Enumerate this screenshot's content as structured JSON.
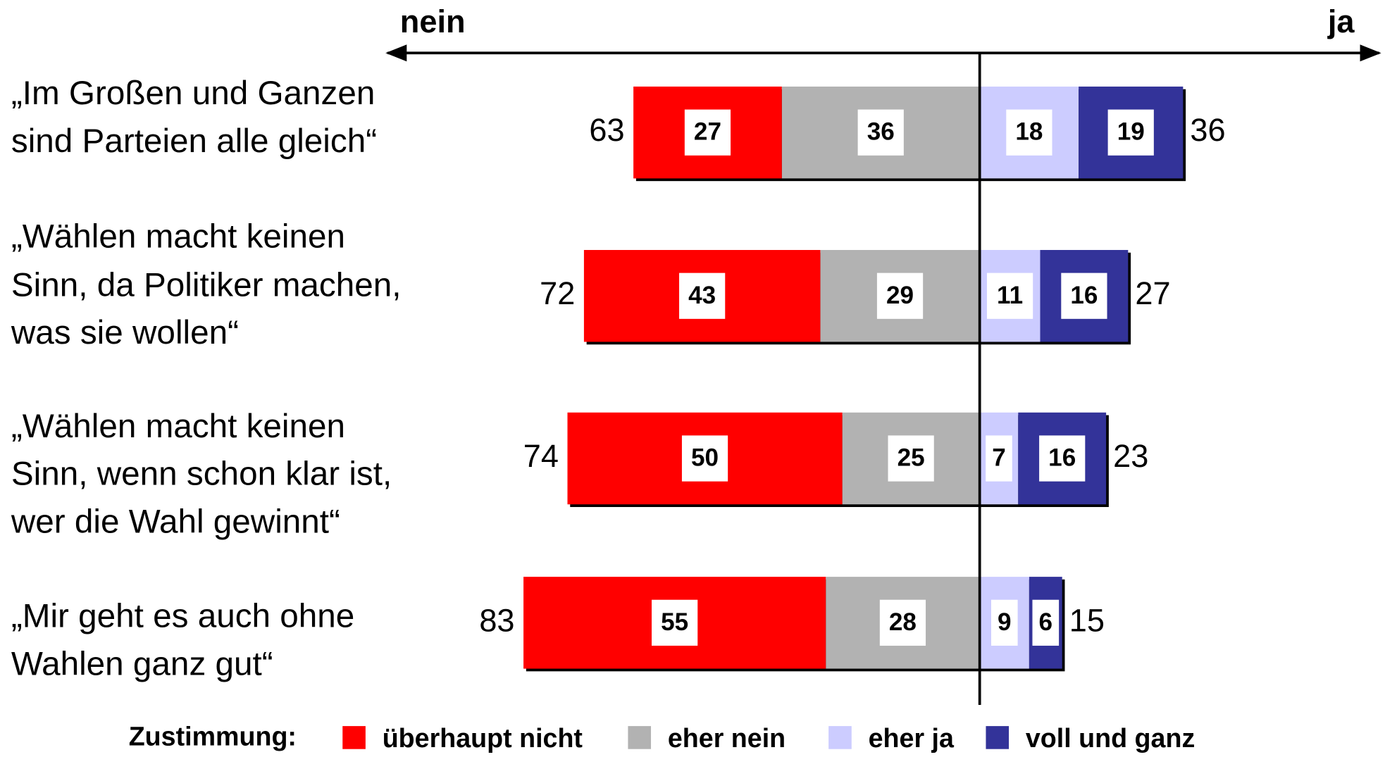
{
  "chart_data": {
    "type": "diverging-bar",
    "axis_left_label": "nein",
    "axis_right_label": "ja",
    "categories": [
      [
        "„Im Großen und Ganzen",
        "sind Parteien alle gleich“"
      ],
      [
        "„Wählen macht keinen",
        "Sinn, da Politiker machen,",
        "was sie wollen“"
      ],
      [
        "„Wählen macht keinen",
        "Sinn, wenn schon klar ist,",
        "wer die Wahl gewinnt“"
      ],
      [
        "„Mir geht es auch ohne",
        "Wahlen ganz gut“"
      ]
    ],
    "series": [
      {
        "name": "überhaupt nicht",
        "color": "#ff0000",
        "values": [
          27,
          43,
          50,
          55
        ]
      },
      {
        "name": "eher nein",
        "color": "#b2b2b2",
        "values": [
          36,
          29,
          25,
          28
        ]
      },
      {
        "name": "eher ja",
        "color": "#ccccff",
        "values": [
          18,
          11,
          7,
          9
        ]
      },
      {
        "name": "voll und ganz",
        "color": "#333399",
        "values": [
          19,
          16,
          16,
          6
        ]
      }
    ],
    "nein_totals": [
      63,
      72,
      74,
      83
    ],
    "ja_totals": [
      36,
      27,
      23,
      15
    ],
    "legend_title": "Zustimmung:"
  }
}
